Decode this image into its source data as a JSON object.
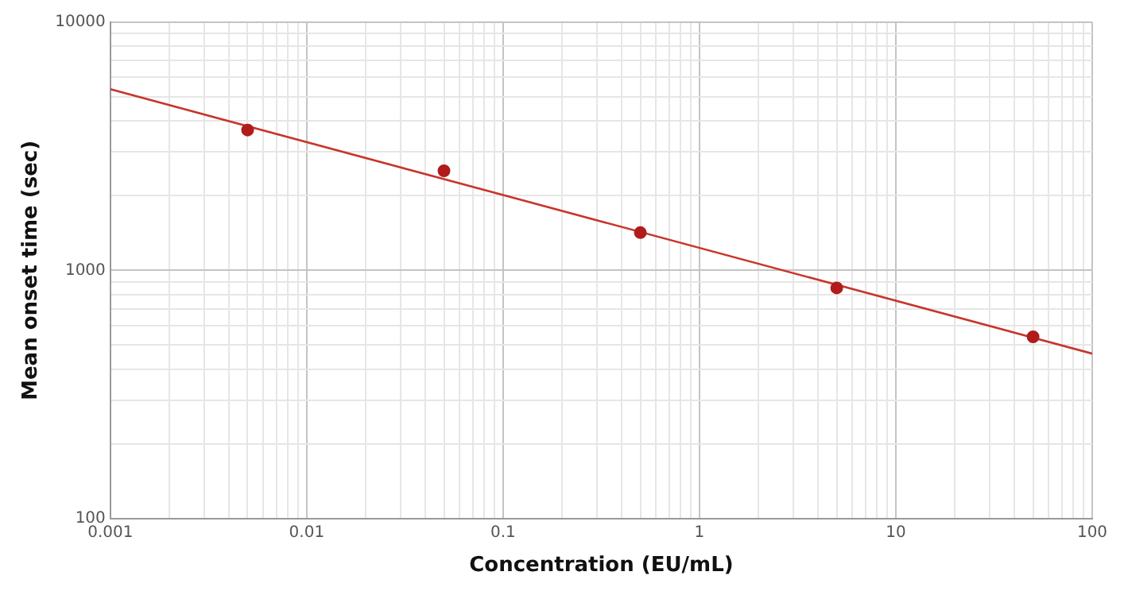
{
  "chart_data": {
    "type": "scatter",
    "xlabel": "Concentration (EU/mL)",
    "ylabel": "Mean onset time (sec)",
    "log": "xy",
    "grid": true,
    "legend": false,
    "marker": "circle",
    "xlim": [
      0.001,
      100
    ],
    "ylim": [
      100,
      10000
    ],
    "xticks": [
      0.001,
      {
        "value": 0.002,
        "label": null
      },
      {
        "value": 0.003,
        "label": null
      },
      {
        "value": 0.004,
        "label": null
      },
      {
        "value": 0.005,
        "label": null
      },
      {
        "value": 0.006,
        "label": null
      },
      {
        "value": 0.007,
        "label": null
      },
      {
        "value": 0.008,
        "label": null
      },
      {
        "value": 0.009,
        "label": null
      },
      0.01,
      {
        "value": 0.02,
        "label": null
      },
      {
        "value": 0.03,
        "label": null
      },
      {
        "value": 0.04,
        "label": null
      },
      {
        "value": 0.05,
        "label": null
      },
      {
        "value": 0.06,
        "label": null
      },
      {
        "value": 0.07,
        "label": null
      },
      {
        "value": 0.08,
        "label": null
      },
      {
        "value": 0.09,
        "label": null
      },
      0.1,
      {
        "value": 0.2,
        "label": null
      },
      {
        "value": 0.3,
        "label": null
      },
      {
        "value": 0.4,
        "label": null
      },
      {
        "value": 0.5,
        "label": null
      },
      {
        "value": 0.6,
        "label": null
      },
      {
        "value": 0.7,
        "label": null
      },
      {
        "value": 0.8,
        "label": null
      },
      {
        "value": 0.9,
        "label": null
      },
      1,
      {
        "value": 2,
        "label": null
      },
      {
        "value": 3,
        "label": null
      },
      {
        "value": 4,
        "label": null
      },
      {
        "value": 5,
        "label": null
      },
      {
        "value": 6,
        "label": null
      },
      {
        "value": 7,
        "label": null
      },
      {
        "value": 8,
        "label": null
      },
      {
        "value": 9,
        "label": null
      },
      10,
      {
        "value": 20,
        "label": null
      },
      {
        "value": 30,
        "label": null
      },
      {
        "value": 40,
        "label": null
      },
      {
        "value": 50,
        "label": null
      },
      {
        "value": 60,
        "label": null
      },
      {
        "value": 70,
        "label": null
      },
      {
        "value": 80,
        "label": null
      },
      {
        "value": 90,
        "label": null
      },
      100
    ],
    "yticks": [
      100,
      {
        "value": 200,
        "label": null
      },
      {
        "value": 300,
        "label": null
      },
      {
        "value": 400,
        "label": null
      },
      {
        "value": 500,
        "label": null
      },
      {
        "value": 600,
        "label": null
      },
      {
        "value": 700,
        "label": null
      },
      {
        "value": 800,
        "label": null
      },
      {
        "value": 900,
        "label": null
      },
      1000,
      {
        "value": 2000,
        "label": null
      },
      {
        "value": 3000,
        "label": null
      },
      {
        "value": 4000,
        "label": null
      },
      {
        "value": 5000,
        "label": null
      },
      {
        "value": 6000,
        "label": null
      },
      {
        "value": 7000,
        "label": null
      },
      {
        "value": 8000,
        "label": null
      },
      {
        "value": 9000,
        "label": null
      },
      10000
    ],
    "series": [
      {
        "color": "#b01c1c",
        "x": [
          0.005,
          0.05,
          0.5,
          5,
          50
        ],
        "values": [
          3680,
          2520,
          1420,
          850,
          540
        ]
      },
      {
        "type": "line",
        "color": "#c8352a",
        "marker": "none",
        "x": [
          0.001,
          100
        ],
        "values": [
          5370,
          462
        ]
      }
    ]
  }
}
